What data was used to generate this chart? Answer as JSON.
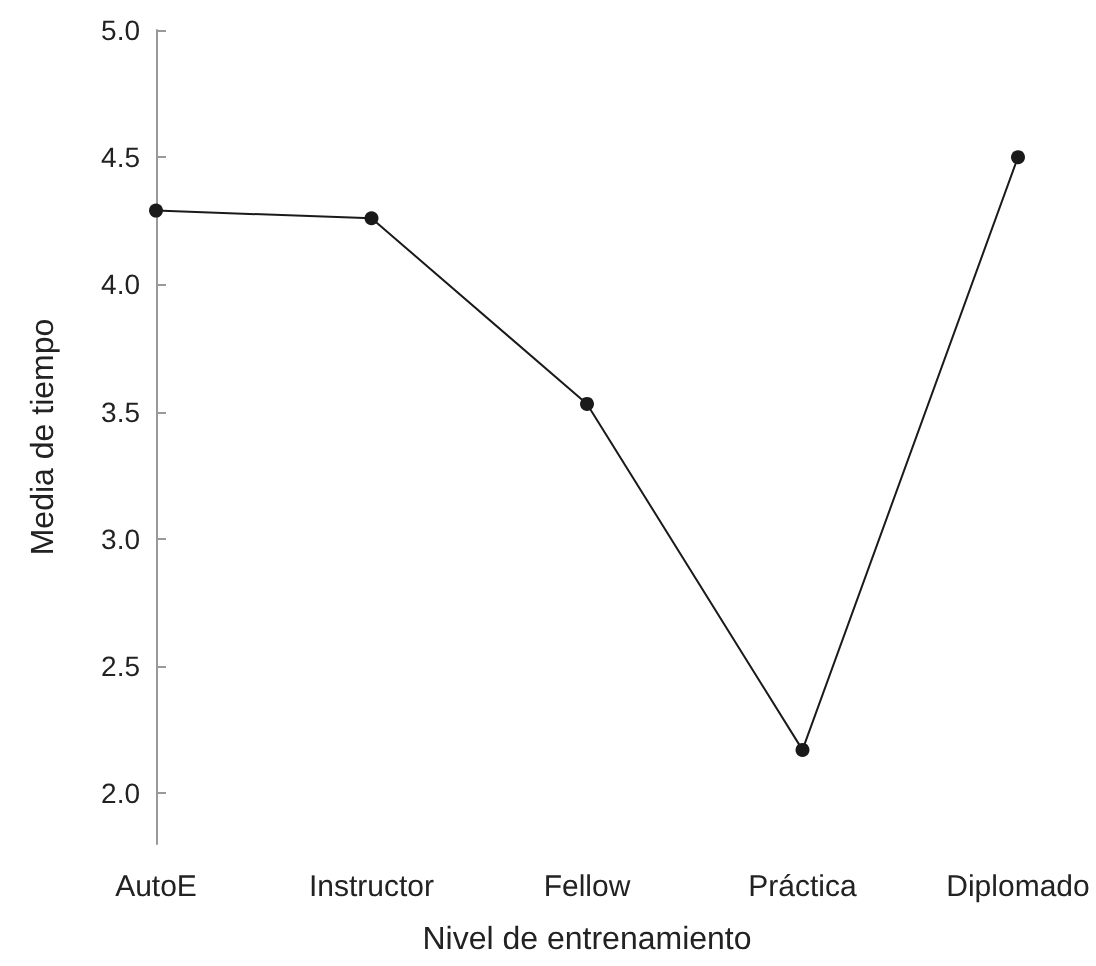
{
  "chart_data": {
    "type": "line",
    "xlabel": "Nivel de entrenamiento",
    "ylabel": "Media de tiempo",
    "categories": [
      "AutoE",
      "Instructor",
      "Fellow",
      "Práctica",
      "Diplomado"
    ],
    "series": [
      {
        "color": "#1a1a1a",
        "values": [
          4.29,
          4.26,
          3.53,
          2.17,
          4.5
        ]
      }
    ],
    "ylim": [
      1.8,
      5.0
    ],
    "yticks": [
      {
        "value": 2,
        "label": "2.0"
      },
      {
        "value": 2.5,
        "label": "2.5"
      },
      {
        "value": 3,
        "label": "3.0"
      },
      {
        "value": 3.5,
        "label": "3.5"
      },
      {
        "value": 4,
        "label": "4.0"
      },
      {
        "value": 4.5,
        "label": "4.5"
      },
      {
        "value": 5,
        "label": "5.0"
      }
    ],
    "marker": "circle",
    "grid": false
  }
}
